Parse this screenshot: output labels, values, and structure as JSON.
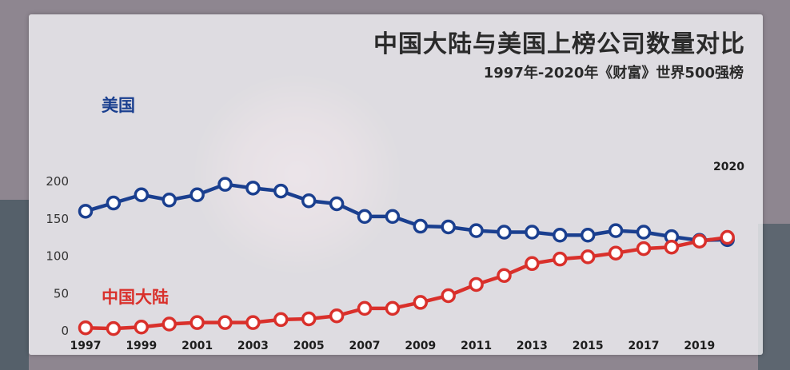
{
  "title": "中国大陆与美国上榜公司数量对比",
  "subtitle": "1997年-2020年《财富》世界500强榜",
  "end_label": "2020",
  "chart_data": {
    "type": "line",
    "title": "中国大陆与美国上榜公司数量对比",
    "subtitle": "1997年-2020年《财富》世界500强榜",
    "xlabel": "",
    "ylabel": "",
    "ylim": [
      0,
      200
    ],
    "yticks": [
      0,
      50,
      100,
      150,
      200
    ],
    "x": [
      1997,
      1998,
      1999,
      2000,
      2001,
      2002,
      2003,
      2004,
      2005,
      2006,
      2007,
      2008,
      2009,
      2010,
      2011,
      2012,
      2013,
      2014,
      2015,
      2016,
      2017,
      2018,
      2019,
      2020
    ],
    "xticks": [
      1997,
      1999,
      2001,
      2003,
      2005,
      2007,
      2009,
      2011,
      2013,
      2015,
      2017,
      2019
    ],
    "grid": false,
    "legend": "inline labels",
    "series": [
      {
        "name": "美国",
        "color": "#1a3f8f",
        "values": [
          159,
          170,
          181,
          174,
          181,
          195,
          190,
          186,
          173,
          169,
          152,
          152,
          139,
          138,
          133,
          131,
          131,
          127,
          127,
          133,
          131,
          125,
          120,
          121
        ]
      },
      {
        "name": "中国大陆",
        "color": "#d9302b",
        "values": [
          3,
          2,
          4,
          8,
          10,
          10,
          10,
          14,
          15,
          19,
          29,
          29,
          37,
          46,
          61,
          73,
          89,
          95,
          98,
          103,
          109,
          111,
          119,
          124
        ]
      }
    ]
  }
}
